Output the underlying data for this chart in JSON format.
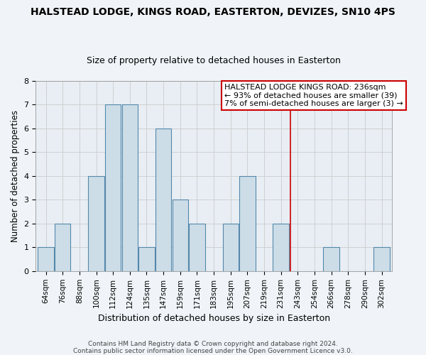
{
  "title": "HALSTEAD LODGE, KINGS ROAD, EASTERTON, DEVIZES, SN10 4PS",
  "subtitle": "Size of property relative to detached houses in Easterton",
  "xlabel": "Distribution of detached houses by size in Easterton",
  "ylabel": "Number of detached properties",
  "bar_labels": [
    "64sqm",
    "76sqm",
    "88sqm",
    "100sqm",
    "112sqm",
    "124sqm",
    "135sqm",
    "147sqm",
    "159sqm",
    "171sqm",
    "183sqm",
    "195sqm",
    "207sqm",
    "219sqm",
    "231sqm",
    "243sqm",
    "254sqm",
    "266sqm",
    "278sqm",
    "290sqm",
    "302sqm"
  ],
  "bar_heights": [
    1,
    2,
    0,
    4,
    7,
    7,
    1,
    6,
    3,
    2,
    0,
    2,
    4,
    0,
    2,
    0,
    0,
    1,
    0,
    0,
    1
  ],
  "bar_color": "#ccdde8",
  "bar_edge_color": "#5588aa",
  "grid_color": "#cccccc",
  "vline_x_index": 14.55,
  "vline_color": "#cc0000",
  "annotation_text_line1": "HALSTEAD LODGE KINGS ROAD: 236sqm",
  "annotation_text_line2": "← 93% of detached houses are smaller (39)",
  "annotation_text_line3": "7% of semi-detached houses are larger (3) →",
  "footnote": "Contains HM Land Registry data © Crown copyright and database right 2024.\nContains public sector information licensed under the Open Government Licence v3.0.",
  "ylim": [
    0,
    8
  ],
  "yticks": [
    0,
    1,
    2,
    3,
    4,
    5,
    6,
    7,
    8
  ],
  "background_color": "#f0f4f8",
  "plot_bg_color": "#e8eef4",
  "title_fontsize": 10,
  "subtitle_fontsize": 9,
  "annotation_fontsize": 8,
  "xlabel_fontsize": 9,
  "ylabel_fontsize": 8.5,
  "tick_fontsize": 7.5,
  "footnote_fontsize": 6.5
}
